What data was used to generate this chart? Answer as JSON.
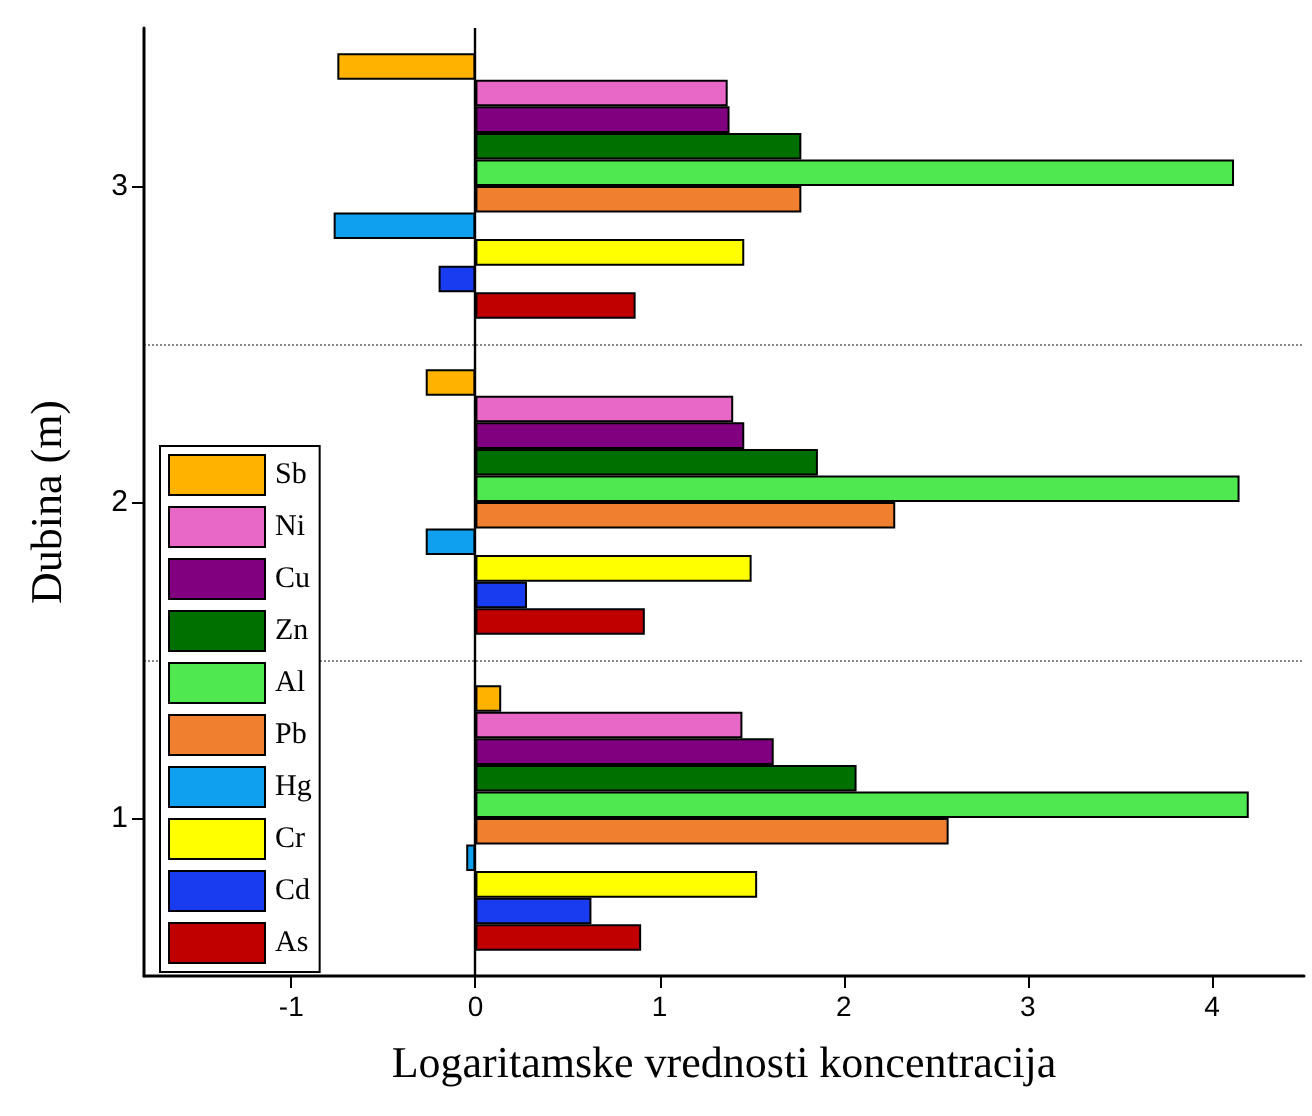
{
  "chart_data": {
    "type": "bar",
    "orientation": "horizontal",
    "xlabel": "Logaritamske vrednosti koncentracija",
    "ylabel": "Dubina (m)",
    "categories": [
      "3",
      "2",
      "1"
    ],
    "series": [
      {
        "name": "Sb",
        "color": "#ffb300",
        "values": [
          -0.75,
          -0.27,
          0.14
        ]
      },
      {
        "name": "Ni",
        "color": "#e868c8",
        "values": [
          1.37,
          1.4,
          1.45
        ]
      },
      {
        "name": "Cu",
        "color": "#800080",
        "values": [
          1.38,
          1.46,
          1.62
        ]
      },
      {
        "name": "Zn",
        "color": "#007000",
        "values": [
          1.77,
          1.86,
          2.07
        ]
      },
      {
        "name": "Al",
        "color": "#50e850",
        "values": [
          4.12,
          4.15,
          4.2
        ]
      },
      {
        "name": "Pb",
        "color": "#f08030",
        "values": [
          1.77,
          2.28,
          2.57
        ]
      },
      {
        "name": "Hg",
        "color": "#10a0f0",
        "values": [
          -0.77,
          -0.27,
          -0.05
        ]
      },
      {
        "name": "Cr",
        "color": "#ffff00",
        "values": [
          1.46,
          1.5,
          1.53
        ]
      },
      {
        "name": "Cd",
        "color": "#1a3cf0",
        "values": [
          -0.2,
          0.28,
          0.63
        ]
      },
      {
        "name": "As",
        "color": "#c00000",
        "values": [
          0.87,
          0.92,
          0.9
        ]
      }
    ],
    "xlim": [
      -1.8,
      4.5
    ],
    "xticks": [
      -1,
      0,
      1,
      2,
      3,
      4
    ],
    "ref_lines": [
      {
        "axis": "x",
        "value": 0,
        "color": "#000000"
      }
    ],
    "grid": "y",
    "legend": "bottom left"
  }
}
